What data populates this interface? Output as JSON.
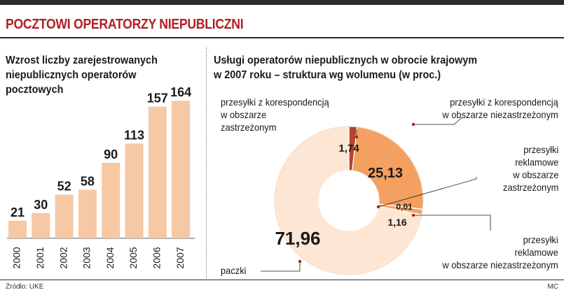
{
  "header": {
    "title": "POCZTOWI OPERATORZY NIEPUBLICZNI"
  },
  "colors": {
    "accent_red": "#b01e23",
    "bar_fill": "#f6c8a4",
    "donut_light": "#fde6d3",
    "donut_orange": "#f3a060",
    "donut_dark": "#b0442c"
  },
  "footer": {
    "source": "Źródło: UKE",
    "credit": "MC"
  },
  "chart_data": [
    {
      "type": "bar",
      "title": "Wzrost liczby zarejestrowanych\nniepublicznych operatorów\npocztowych",
      "categories": [
        "2000",
        "2001",
        "2002",
        "2003",
        "2004",
        "2005",
        "2006",
        "2007"
      ],
      "values": [
        21,
        30,
        52,
        58,
        90,
        113,
        157,
        164
      ],
      "value_labels": [
        "21",
        "30",
        "52",
        "58",
        "90",
        "113",
        "157",
        "164"
      ],
      "xlabel": "",
      "ylabel": "",
      "ylim": [
        0,
        170
      ]
    },
    {
      "type": "pie",
      "subtype": "donut",
      "title": "Usługi operatorów niepublicznych w obrocie krajowym\nw 2007 roku – struktura wg wolumenu (w proc.)",
      "slices": [
        {
          "label": "przesyłki z korespondencją\nw obszarze\nzastrzeżonym",
          "value": 1.74,
          "value_label": "1,74",
          "color": "#b0442c"
        },
        {
          "label": "przesyłki z korespondencją\nw obszarze niezastrzeżonym",
          "value": 25.13,
          "value_label": "25,13",
          "color": "#f3a060"
        },
        {
          "label": "przesyłki\nreklamowe\nw obszarze\nzastrzeżonym",
          "value": 0.01,
          "value_label": "0,01",
          "color": "#fde6d3"
        },
        {
          "label": "przesyłki\nreklamowe\nw obszarze niezastrzeżonym",
          "value": 1.16,
          "value_label": "1,16",
          "color": "#f3a060"
        },
        {
          "label": "paczki",
          "value": 71.96,
          "value_label": "71,96",
          "color": "#fde6d3"
        }
      ]
    }
  ]
}
